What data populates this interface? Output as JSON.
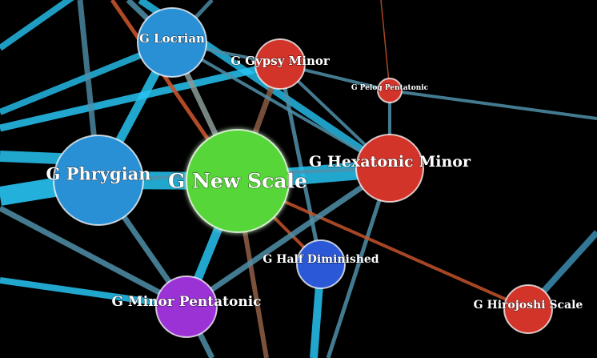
{
  "graph": {
    "colors": {
      "background": "#000000",
      "edge_primary": "#27c3f2",
      "edge_muted": "#4f8fa8",
      "edge_orange": "#c4522a",
      "edge_brown": "#8a5a43",
      "edge_gray": "#8a9a98",
      "node_blue": "#2a90d6",
      "node_red": "#d2342a",
      "node_green": "#57d637",
      "node_purple": "#9b32d6",
      "node_indigo": "#2a58d6"
    },
    "nodes": [
      {
        "id": "new-scale",
        "label": "G New Scale",
        "color": "node_green",
        "importance": "center"
      },
      {
        "id": "phrygian",
        "label": "G Phrygian",
        "color": "node_blue",
        "importance": "large"
      },
      {
        "id": "hexatonic-minor",
        "label": "G Hexatonic Minor",
        "color": "node_red",
        "importance": "large"
      },
      {
        "id": "locrian",
        "label": "G Locrian",
        "color": "node_blue",
        "importance": "medium"
      },
      {
        "id": "minor-pentatonic",
        "label": "G Minor Pentatonic",
        "color": "node_purple",
        "importance": "medium"
      },
      {
        "id": "gypsy-minor",
        "label": "G Gypsy Minor",
        "color": "node_red",
        "importance": "small"
      },
      {
        "id": "half-diminished",
        "label": "G Half Diminished",
        "color": "node_indigo",
        "importance": "small"
      },
      {
        "id": "hirojoshi",
        "label": "G Hirojoshi Scale",
        "color": "node_red",
        "importance": "small"
      },
      {
        "id": "pelog-pentatonic",
        "label": "G Pelog Pentatonic",
        "color": "node_red",
        "importance": "tiny"
      }
    ],
    "edges": [
      {
        "from": "phrygian",
        "to": "new-scale",
        "color": "edge_primary",
        "weight": 5
      },
      {
        "from": "new-scale",
        "to": "hexatonic-minor",
        "color": "edge_primary",
        "weight": 5
      },
      {
        "from": "new-scale",
        "to": "minor-pentatonic",
        "color": "edge_primary",
        "weight": 3
      },
      {
        "from": "phrygian",
        "to": "locrian",
        "color": "edge_primary",
        "weight": 3
      },
      {
        "from": "new-scale",
        "to": "locrian",
        "color": "edge_gray",
        "weight": 2
      },
      {
        "from": "new-scale",
        "to": "gypsy-minor",
        "color": "edge_brown",
        "weight": 2
      },
      {
        "from": "new-scale",
        "to": "half-diminished",
        "color": "edge_orange",
        "weight": 1
      },
      {
        "from": "new-scale",
        "to": "hirojoshi",
        "color": "edge_orange",
        "weight": 1
      },
      {
        "from": "phrygian",
        "to": "minor-pentatonic",
        "color": "edge_muted",
        "weight": 2
      },
      {
        "from": "minor-pentatonic",
        "to": "hexatonic-minor",
        "color": "edge_muted",
        "weight": 2
      },
      {
        "from": "locrian",
        "to": "gypsy-minor",
        "color": "edge_muted",
        "weight": 1
      },
      {
        "from": "gypsy-minor",
        "to": "pelog-pentatonic",
        "color": "edge_muted",
        "weight": 1
      },
      {
        "from": "gypsy-minor",
        "to": "hexatonic-minor",
        "color": "edge_muted",
        "weight": 1
      },
      {
        "from": "phrygian",
        "to": "hexatonic-minor",
        "color": "edge_muted",
        "weight": 1
      },
      {
        "from": "locrian",
        "to": "hexatonic-minor",
        "color": "edge_muted",
        "weight": 1
      },
      {
        "from": "pelog-pentatonic",
        "to": "hexatonic-minor",
        "color": "edge_muted",
        "weight": 1
      }
    ]
  }
}
